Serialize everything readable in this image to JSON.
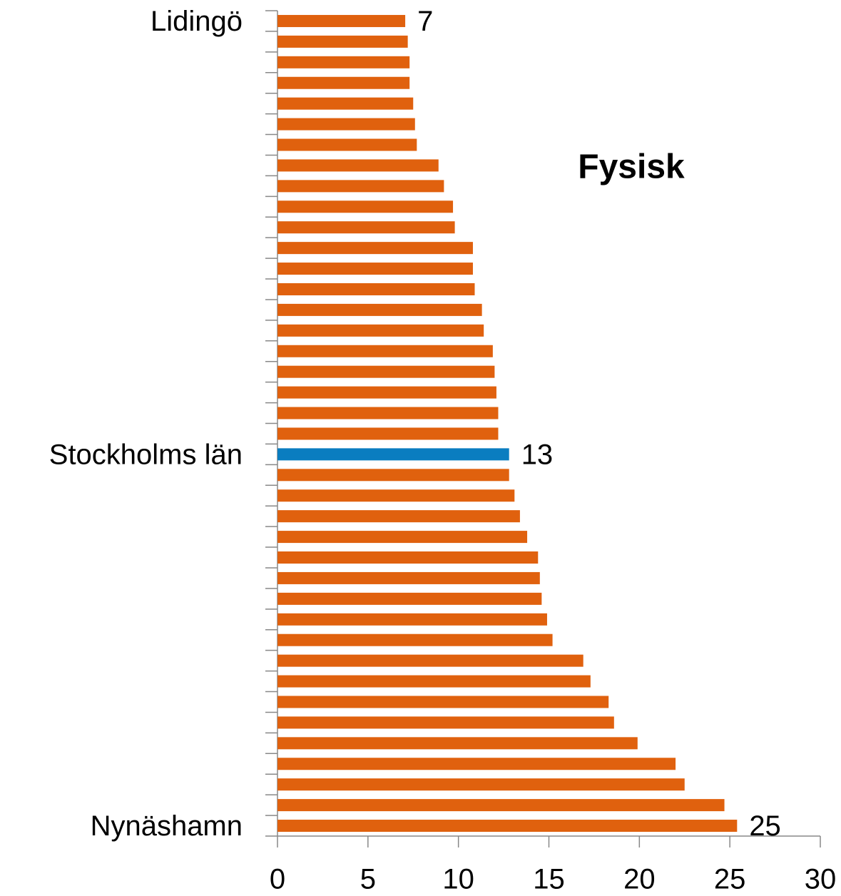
{
  "chart_data": {
    "type": "hbar",
    "annotation": "Fysisk",
    "categories": [
      "Lidingö",
      null,
      null,
      null,
      null,
      null,
      null,
      null,
      null,
      null,
      null,
      null,
      null,
      null,
      null,
      null,
      null,
      null,
      null,
      null,
      null,
      "Stockholms län",
      null,
      null,
      null,
      null,
      null,
      null,
      null,
      null,
      null,
      null,
      null,
      null,
      null,
      null,
      null,
      null,
      null,
      "Nynäshamn"
    ],
    "values": [
      7.06,
      7.2,
      7.3,
      7.3,
      7.5,
      7.6,
      7.7,
      8.9,
      9.2,
      9.7,
      9.8,
      10.8,
      10.8,
      10.9,
      11.3,
      11.4,
      11.9,
      12.0,
      12.1,
      12.2,
      12.2,
      12.8,
      12.8,
      13.1,
      13.4,
      13.8,
      14.4,
      14.5,
      14.6,
      14.9,
      15.2,
      16.9,
      17.3,
      18.3,
      18.6,
      19.9,
      22.0,
      22.5,
      24.7,
      25.4
    ],
    "value_labels": [
      "7",
      null,
      null,
      null,
      null,
      null,
      null,
      null,
      null,
      null,
      null,
      null,
      null,
      null,
      null,
      null,
      null,
      null,
      null,
      null,
      null,
      "13",
      null,
      null,
      null,
      null,
      null,
      null,
      null,
      null,
      null,
      null,
      null,
      null,
      null,
      null,
      null,
      null,
      null,
      "25"
    ],
    "colors": [
      "#e0610e",
      "#e0610e",
      "#e0610e",
      "#e0610e",
      "#e0610e",
      "#e0610e",
      "#e0610e",
      "#e0610e",
      "#e0610e",
      "#e0610e",
      "#e0610e",
      "#e0610e",
      "#e0610e",
      "#e0610e",
      "#e0610e",
      "#e0610e",
      "#e0610e",
      "#e0610e",
      "#e0610e",
      "#e0610e",
      "#e0610e",
      "#0a7dc0",
      "#e0610e",
      "#e0610e",
      "#e0610e",
      "#e0610e",
      "#e0610e",
      "#e0610e",
      "#e0610e",
      "#e0610e",
      "#e0610e",
      "#e0610e",
      "#e0610e",
      "#e0610e",
      "#e0610e",
      "#e0610e",
      "#e0610e",
      "#e0610e",
      "#e0610e",
      "#e0610e"
    ],
    "xlim": [
      0,
      30
    ],
    "xticks": [
      0,
      5,
      10,
      15,
      20,
      25,
      30
    ],
    "grid": false
  }
}
